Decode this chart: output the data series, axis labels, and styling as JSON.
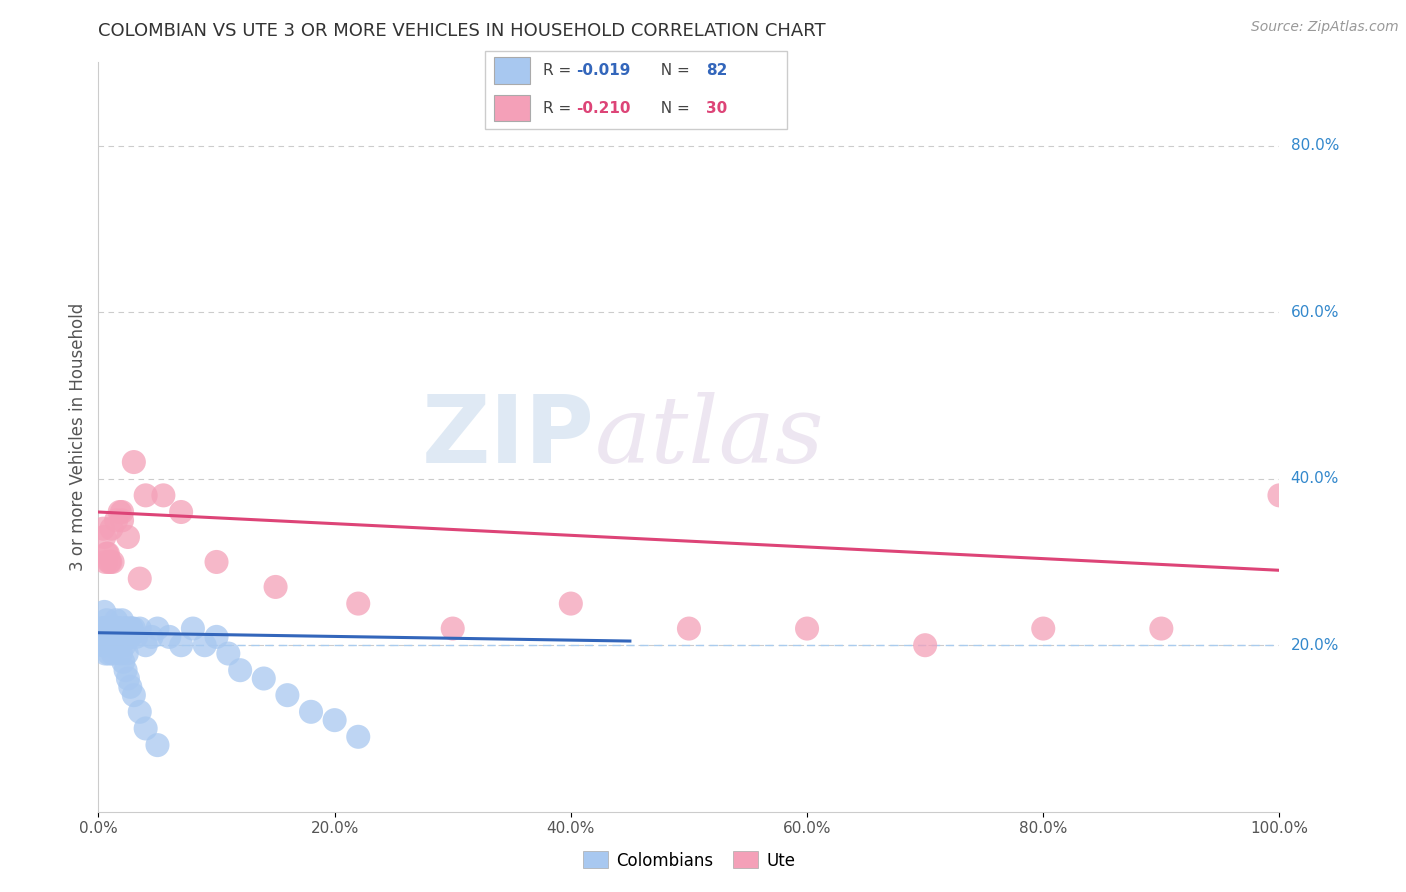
{
  "title": "COLOMBIAN VS UTE 3 OR MORE VEHICLES IN HOUSEHOLD CORRELATION CHART",
  "source": "Source: ZipAtlas.com",
  "xlabel_ticks": [
    "0.0%",
    "20.0%",
    "40.0%",
    "60.0%",
    "80.0%",
    "100.0%"
  ],
  "xlabel_tick_vals": [
    0,
    20,
    40,
    60,
    80,
    100
  ],
  "ylabel": "3 or more Vehicles in Household",
  "right_ytick_labels": [
    "80.0%",
    "60.0%",
    "40.0%",
    "20.0%"
  ],
  "right_ytick_vals": [
    80,
    60,
    40,
    20
  ],
  "blue_color": "#a8c8f0",
  "pink_color": "#f4a0b8",
  "blue_line_color": "#3366bb",
  "pink_line_color": "#dd4477",
  "text_color_blue": "#3366bb",
  "text_color_pink": "#dd4477",
  "legend_r1_label": "R = ",
  "legend_r1_val": "-0.019",
  "legend_n1_label": "N = ",
  "legend_n1_val": "82",
  "legend_r2_label": "R = ",
  "legend_r2_val": "-0.210",
  "legend_n2_label": "N = ",
  "legend_n2_val": "30",
  "blue_scatter_x": [
    0.3,
    0.5,
    0.5,
    0.6,
    0.7,
    0.8,
    0.9,
    1.0,
    1.0,
    1.1,
    1.2,
    1.2,
    1.3,
    1.4,
    1.5,
    1.5,
    1.6,
    1.7,
    1.8,
    1.9,
    2.0,
    2.1,
    2.2,
    2.3,
    2.4,
    2.5,
    2.6,
    2.7,
    2.8,
    3.0,
    0.4,
    0.6,
    0.8,
    1.0,
    1.2,
    1.4,
    1.6,
    1.8,
    2.0,
    2.2,
    2.4,
    2.6,
    2.8,
    3.2,
    3.5,
    4.0,
    4.5,
    5.0,
    6.0,
    7.0,
    8.0,
    9.0,
    10.0,
    11.0,
    12.0,
    14.0,
    16.0,
    18.0,
    20.0,
    22.0,
    0.2,
    0.3,
    0.4,
    0.5,
    0.6,
    0.7,
    0.8,
    0.9,
    1.0,
    1.1,
    1.3,
    1.5,
    1.7,
    1.9,
    2.1,
    2.3,
    2.5,
    2.7,
    3.0,
    3.5,
    4.0,
    5.0
  ],
  "blue_scatter_y": [
    22,
    24,
    20,
    21,
    23,
    22,
    21,
    22,
    20,
    21,
    19,
    22,
    21,
    22,
    23,
    20,
    22,
    21,
    22,
    21,
    23,
    22,
    20,
    21,
    22,
    21,
    22,
    21,
    22,
    22,
    20,
    19,
    21,
    20,
    22,
    21,
    22,
    20,
    21,
    22,
    19,
    21,
    22,
    21,
    22,
    20,
    21,
    22,
    21,
    20,
    22,
    20,
    21,
    19,
    17,
    16,
    14,
    12,
    11,
    9,
    21,
    22,
    21,
    22,
    22,
    21,
    20,
    19,
    22,
    21,
    22,
    20,
    22,
    19,
    18,
    17,
    16,
    15,
    14,
    12,
    10,
    8
  ],
  "pink_scatter_x": [
    0.4,
    0.5,
    0.7,
    0.8,
    0.9,
    1.0,
    1.2,
    1.5,
    1.8,
    2.0,
    2.5,
    3.0,
    4.0,
    5.5,
    7.0,
    10.0,
    15.0,
    22.0,
    30.0,
    40.0,
    50.0,
    60.0,
    70.0,
    80.0,
    90.0,
    100.0,
    0.6,
    1.1,
    2.0,
    3.5
  ],
  "pink_scatter_y": [
    34,
    33,
    31,
    31,
    30,
    30,
    30,
    35,
    36,
    35,
    33,
    42,
    38,
    38,
    36,
    30,
    27,
    25,
    22,
    25,
    22,
    22,
    20,
    22,
    22,
    38,
    30,
    34,
    36,
    28
  ],
  "blue_trend_x0": 0,
  "blue_trend_x1": 45,
  "blue_trend_y0": 21.5,
  "blue_trend_y1": 20.5,
  "pink_trend_x0": 0,
  "pink_trend_x1": 100,
  "pink_trend_y0": 36,
  "pink_trend_y1": 29,
  "dashed_line_y": 20,
  "xlim": [
    0,
    100
  ],
  "ylim": [
    0,
    90
  ],
  "grid_vals": [
    20,
    40,
    60,
    80
  ],
  "watermark": "ZIPatlas",
  "watermark_zip": "ZIP",
  "watermark_atlas": "atlas"
}
